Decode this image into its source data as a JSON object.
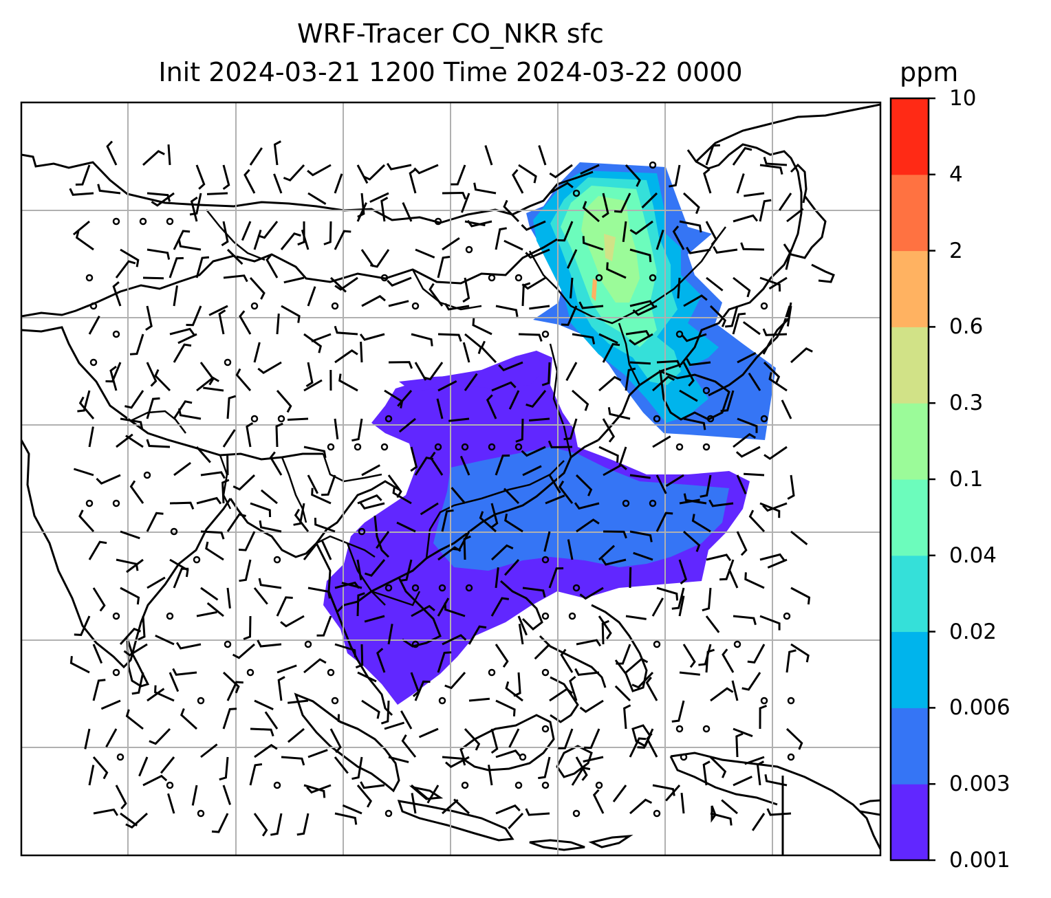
{
  "title": {
    "line1": "WRF-Tracer CO_NKR sfc",
    "line2": "Init 2024-03-21 1200 Time 2024-03-22 0000"
  },
  "colorbar": {
    "units": "ppm",
    "ticks": [
      "0.001",
      "0.003",
      "0.006",
      "0.02",
      "0.04",
      "0.1",
      "0.3",
      "0.6",
      "2",
      "4",
      "10"
    ],
    "colors": [
      "#6127ff",
      "#3575f5",
      "#00b4ec",
      "#35e0d9",
      "#6cfcbc",
      "#9bfb99",
      "#d1e287",
      "#ffb261",
      "#ff7241",
      "#ff2a15"
    ]
  },
  "map": {
    "field": "CO_NKR tracer concentration (filled contours) with wind barbs and calm-wind circles",
    "gridlines": true,
    "coastlines": true,
    "borders": true
  }
}
